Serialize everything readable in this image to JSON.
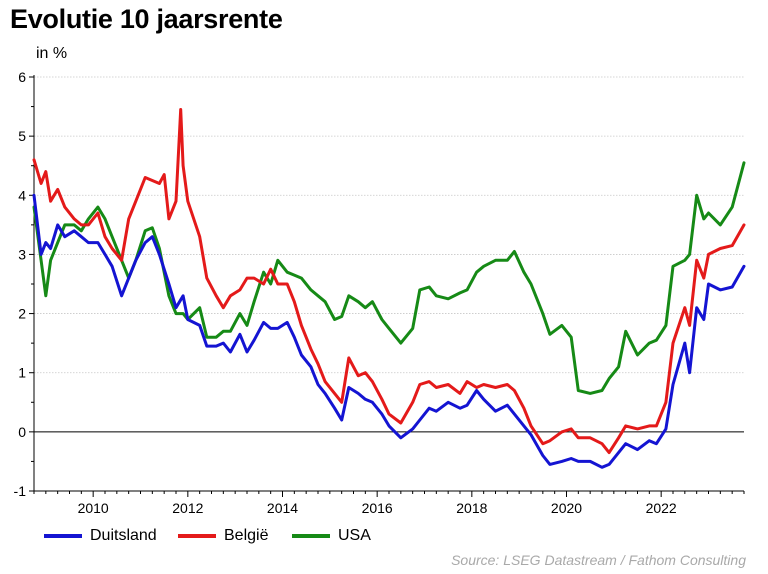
{
  "chart_data": {
    "type": "line",
    "title": "Evolutie 10 jaarsrente",
    "ylabel": "in %",
    "ylim": [
      -1,
      6
    ],
    "yticks": [
      "-1",
      "0",
      "1",
      "2",
      "3",
      "4",
      "5",
      "6"
    ],
    "xlim": [
      2008.75,
      2023.75
    ],
    "xticks": [
      "2010",
      "2012",
      "2014",
      "2016",
      "2018",
      "2020",
      "2022"
    ],
    "grid": true,
    "legend_position": "bottom",
    "source": "Source: LSEG Datastream / Fathom Consulting",
    "series": [
      {
        "name": "Duitsland",
        "color": "#1414d2",
        "x": [
          2008.75,
          2008.9,
          2009.0,
          2009.1,
          2009.25,
          2009.4,
          2009.6,
          2009.75,
          2009.9,
          2010.1,
          2010.25,
          2010.4,
          2010.6,
          2010.75,
          2010.9,
          2011.1,
          2011.25,
          2011.4,
          2011.6,
          2011.75,
          2011.9,
          2012.0,
          2012.25,
          2012.4,
          2012.6,
          2012.75,
          2012.9,
          2013.1,
          2013.25,
          2013.4,
          2013.6,
          2013.75,
          2013.9,
          2014.1,
          2014.25,
          2014.4,
          2014.6,
          2014.75,
          2014.9,
          2015.1,
          2015.25,
          2015.4,
          2015.6,
          2015.75,
          2015.9,
          2016.1,
          2016.25,
          2016.5,
          2016.75,
          2016.9,
          2017.1,
          2017.25,
          2017.5,
          2017.75,
          2017.9,
          2018.1,
          2018.25,
          2018.5,
          2018.75,
          2018.9,
          2019.1,
          2019.25,
          2019.5,
          2019.65,
          2019.9,
          2020.1,
          2020.25,
          2020.5,
          2020.75,
          2020.9,
          2021.1,
          2021.25,
          2021.5,
          2021.75,
          2021.9,
          2022.1,
          2022.25,
          2022.5,
          2022.6,
          2022.75,
          2022.9,
          2023.0,
          2023.25,
          2023.5,
          2023.75
        ],
        "values": [
          4.0,
          3.0,
          3.2,
          3.1,
          3.5,
          3.3,
          3.4,
          3.3,
          3.2,
          3.2,
          3.0,
          2.8,
          2.3,
          2.6,
          2.9,
          3.2,
          3.3,
          3.0,
          2.5,
          2.1,
          2.3,
          1.9,
          1.8,
          1.45,
          1.45,
          1.5,
          1.35,
          1.65,
          1.35,
          1.55,
          1.85,
          1.75,
          1.75,
          1.85,
          1.6,
          1.3,
          1.1,
          0.8,
          0.65,
          0.4,
          0.2,
          0.75,
          0.65,
          0.55,
          0.5,
          0.3,
          0.1,
          -0.1,
          0.05,
          0.2,
          0.4,
          0.35,
          0.5,
          0.4,
          0.45,
          0.7,
          0.55,
          0.35,
          0.45,
          0.3,
          0.1,
          -0.05,
          -0.4,
          -0.55,
          -0.5,
          -0.45,
          -0.5,
          -0.5,
          -0.6,
          -0.55,
          -0.35,
          -0.2,
          -0.3,
          -0.15,
          -0.2,
          0.05,
          0.8,
          1.5,
          1.0,
          2.1,
          1.9,
          2.5,
          2.4,
          2.45,
          2.8
        ]
      },
      {
        "name": "België",
        "color": "#e41a1a",
        "x": [
          2008.75,
          2008.9,
          2009.0,
          2009.1,
          2009.25,
          2009.4,
          2009.6,
          2009.75,
          2009.9,
          2010.1,
          2010.25,
          2010.4,
          2010.6,
          2010.75,
          2010.9,
          2011.1,
          2011.25,
          2011.4,
          2011.5,
          2011.6,
          2011.75,
          2011.85,
          2011.9,
          2012.0,
          2012.25,
          2012.4,
          2012.6,
          2012.75,
          2012.9,
          2013.1,
          2013.25,
          2013.4,
          2013.6,
          2013.75,
          2013.9,
          2014.1,
          2014.25,
          2014.4,
          2014.6,
          2014.75,
          2014.9,
          2015.1,
          2015.25,
          2015.4,
          2015.6,
          2015.75,
          2015.9,
          2016.1,
          2016.25,
          2016.5,
          2016.75,
          2016.9,
          2017.1,
          2017.25,
          2017.5,
          2017.75,
          2017.9,
          2018.1,
          2018.25,
          2018.5,
          2018.75,
          2018.9,
          2019.1,
          2019.25,
          2019.5,
          2019.65,
          2019.9,
          2020.1,
          2020.25,
          2020.5,
          2020.75,
          2020.9,
          2021.1,
          2021.25,
          2021.5,
          2021.75,
          2021.9,
          2022.1,
          2022.25,
          2022.5,
          2022.6,
          2022.75,
          2022.9,
          2023.0,
          2023.25,
          2023.5,
          2023.75
        ],
        "values": [
          4.6,
          4.2,
          4.4,
          3.9,
          4.1,
          3.8,
          3.6,
          3.5,
          3.5,
          3.7,
          3.3,
          3.1,
          2.9,
          3.6,
          3.9,
          4.3,
          4.25,
          4.2,
          4.35,
          3.6,
          3.9,
          5.45,
          4.5,
          3.9,
          3.3,
          2.6,
          2.3,
          2.1,
          2.3,
          2.4,
          2.6,
          2.6,
          2.5,
          2.75,
          2.5,
          2.5,
          2.2,
          1.8,
          1.4,
          1.15,
          0.85,
          0.65,
          0.5,
          1.25,
          0.95,
          1.0,
          0.85,
          0.55,
          0.3,
          0.15,
          0.5,
          0.8,
          0.85,
          0.75,
          0.8,
          0.65,
          0.85,
          0.75,
          0.8,
          0.75,
          0.8,
          0.7,
          0.4,
          0.1,
          -0.2,
          -0.15,
          0.0,
          0.05,
          -0.1,
          -0.1,
          -0.2,
          -0.35,
          -0.1,
          0.1,
          0.05,
          0.1,
          0.1,
          0.5,
          1.5,
          2.1,
          1.8,
          2.9,
          2.6,
          3.0,
          3.1,
          3.15,
          3.5
        ]
      },
      {
        "name": "USA",
        "color": "#168a16",
        "x": [
          2008.75,
          2008.9,
          2009.0,
          2009.1,
          2009.25,
          2009.4,
          2009.6,
          2009.75,
          2009.9,
          2010.1,
          2010.25,
          2010.4,
          2010.6,
          2010.75,
          2010.9,
          2011.1,
          2011.25,
          2011.4,
          2011.6,
          2011.75,
          2011.9,
          2012.0,
          2012.25,
          2012.4,
          2012.6,
          2012.75,
          2012.9,
          2013.1,
          2013.25,
          2013.4,
          2013.6,
          2013.75,
          2013.9,
          2014.1,
          2014.25,
          2014.4,
          2014.6,
          2014.75,
          2014.9,
          2015.1,
          2015.25,
          2015.4,
          2015.6,
          2015.75,
          2015.9,
          2016.1,
          2016.25,
          2016.5,
          2016.75,
          2016.9,
          2017.1,
          2017.25,
          2017.5,
          2017.75,
          2017.9,
          2018.1,
          2018.25,
          2018.5,
          2018.75,
          2018.9,
          2019.1,
          2019.25,
          2019.5,
          2019.65,
          2019.9,
          2020.1,
          2020.25,
          2020.5,
          2020.75,
          2020.9,
          2021.1,
          2021.25,
          2021.5,
          2021.75,
          2021.9,
          2022.1,
          2022.25,
          2022.5,
          2022.6,
          2022.75,
          2022.9,
          2023.0,
          2023.25,
          2023.5,
          2023.75
        ],
        "values": [
          3.8,
          2.9,
          2.3,
          2.9,
          3.2,
          3.5,
          3.5,
          3.4,
          3.6,
          3.8,
          3.6,
          3.3,
          2.9,
          2.6,
          2.9,
          3.4,
          3.45,
          3.1,
          2.3,
          2.0,
          2.0,
          1.9,
          2.1,
          1.6,
          1.6,
          1.7,
          1.7,
          2.0,
          1.8,
          2.2,
          2.7,
          2.5,
          2.9,
          2.7,
          2.65,
          2.6,
          2.4,
          2.3,
          2.2,
          1.9,
          1.95,
          2.3,
          2.2,
          2.1,
          2.2,
          1.9,
          1.75,
          1.5,
          1.75,
          2.4,
          2.45,
          2.3,
          2.25,
          2.35,
          2.4,
          2.7,
          2.8,
          2.9,
          2.9,
          3.05,
          2.7,
          2.5,
          2.0,
          1.65,
          1.8,
          1.6,
          0.7,
          0.65,
          0.7,
          0.9,
          1.1,
          1.7,
          1.3,
          1.5,
          1.55,
          1.8,
          2.8,
          2.9,
          3.0,
          4.0,
          3.6,
          3.7,
          3.5,
          3.8,
          4.55
        ]
      }
    ]
  }
}
